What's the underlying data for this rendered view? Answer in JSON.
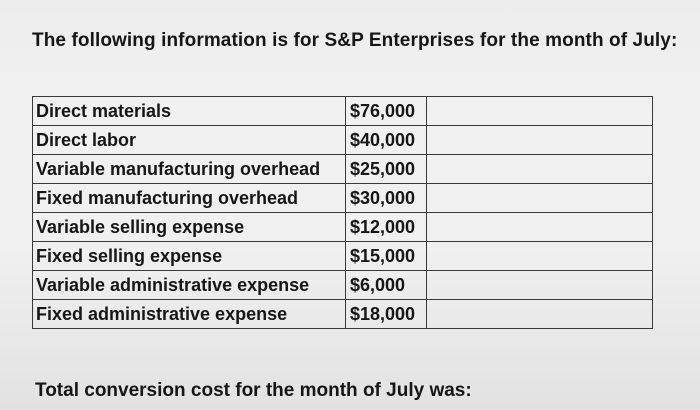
{
  "intro": "The following information is for S&P Enterprises for the month of July:",
  "rows": [
    {
      "label": "Direct materials",
      "amount": "$76,000"
    },
    {
      "label": "Direct labor",
      "amount": "$40,000"
    },
    {
      "label": "Variable manufacturing overhead",
      "amount": "$25,000"
    },
    {
      "label": "Fixed manufacturing overhead",
      "amount": "$30,000"
    },
    {
      "label": "Variable selling expense",
      "amount": "$12,000"
    },
    {
      "label": "Fixed selling expense",
      "amount": "$15,000"
    },
    {
      "label": "Variable administrative expense",
      "amount": "$6,000"
    },
    {
      "label": "Fixed administrative expense",
      "amount": "$18,000"
    }
  ],
  "question": "Total conversion cost for the month of July was:"
}
